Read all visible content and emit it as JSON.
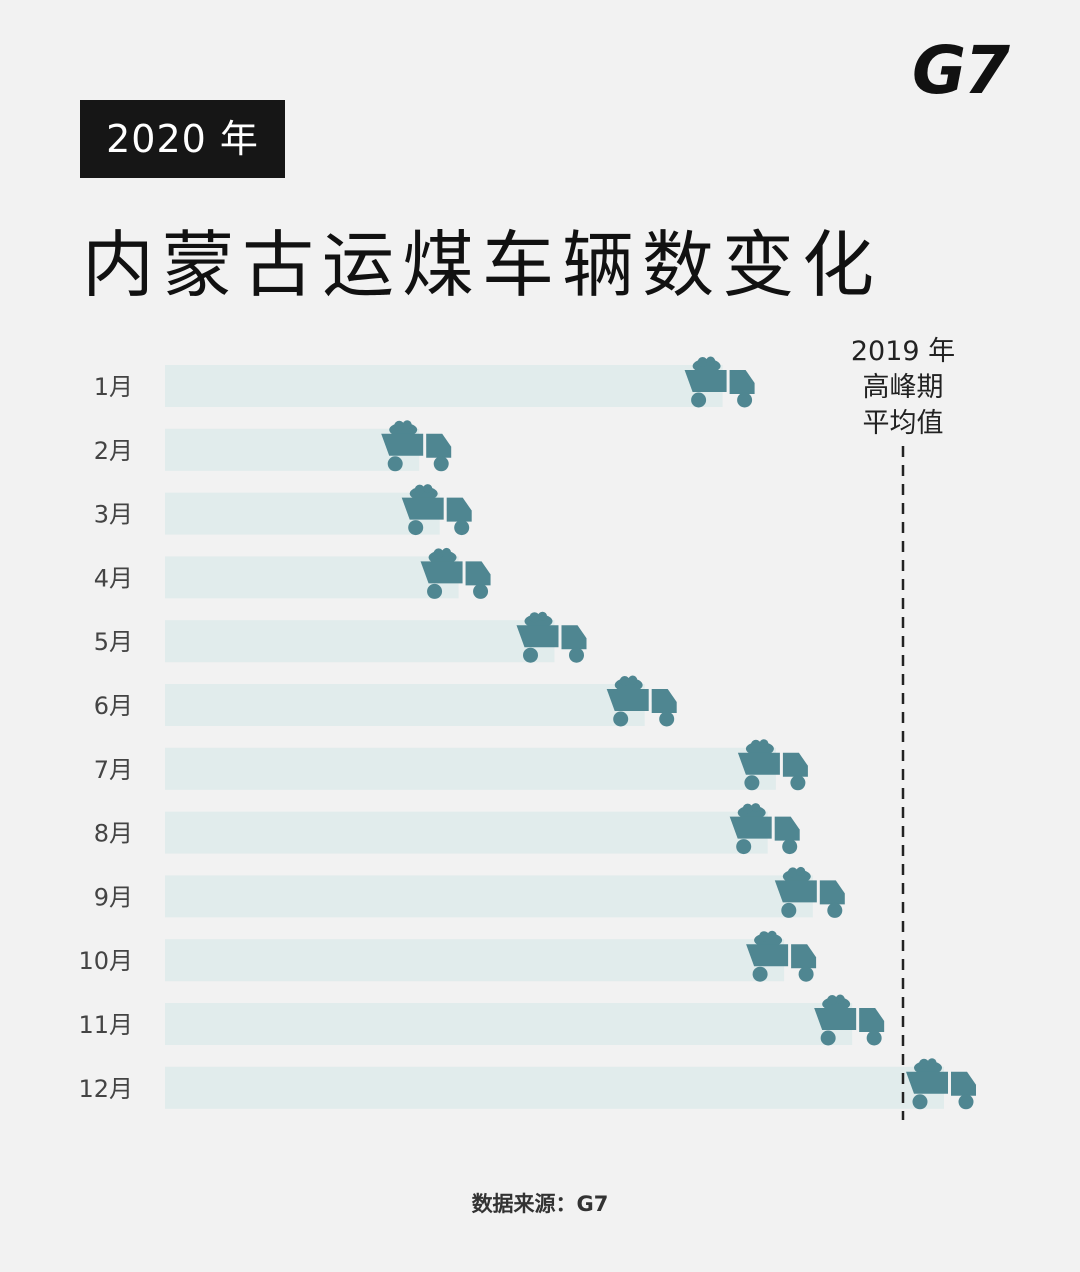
{
  "logo": "G7",
  "year_badge": "2020 年",
  "title": "内蒙古运煤车辆数变化",
  "source": "数据来源：G7",
  "colors": {
    "bar": "#e1ecec",
    "truck": "#4f8691",
    "reference_line": "#222222",
    "label": "#444444"
  },
  "icon": "dump-truck-icon",
  "chart_data": {
    "type": "bar",
    "orientation": "horizontal",
    "categories": [
      "1月",
      "2月",
      "3月",
      "4月",
      "5月",
      "6月",
      "7月",
      "8月",
      "9月",
      "10月",
      "11月",
      "12月"
    ],
    "values": [
      0.68,
      0.31,
      0.335,
      0.358,
      0.475,
      0.585,
      0.745,
      0.735,
      0.79,
      0.755,
      0.838,
      0.95
    ],
    "value_unit": "relative to 2019 peak average = 0.9",
    "reference_line": {
      "value": 0.9,
      "label_lines": [
        "2019 年",
        "高峰期",
        "平均值"
      ],
      "style": "dashed"
    },
    "grid": false,
    "legend": "none"
  }
}
